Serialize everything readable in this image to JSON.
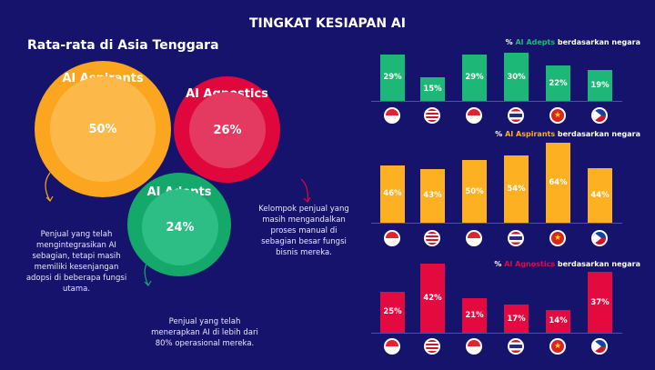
{
  "title": "TINGKAT KESIAPAN AI",
  "subtitle": "Rata-rata di Asia Tenggara",
  "segments": {
    "aspirants": {
      "name": "AI Aspirants",
      "value": "50%",
      "desc": "Penjual yang telah mengintegrasikan AI sebagian, tetapi masih memiliki kesenjangan adopsi di beberapa fungsi utama.",
      "color": "#fca61f"
    },
    "agnostics": {
      "name": "AI Agnostics",
      "value": "26%",
      "desc": "Kelompok penjual yang masih mengandalkan proses manual di sebagian besar fungsi bisnis mereka.",
      "color": "#e0073d"
    },
    "adepts": {
      "name": "AI Adepts",
      "value": "24%",
      "desc": "Penjual yang telah menerapkan AI di lebih dari 80% operasional mereka.",
      "color": "#14a86b"
    }
  },
  "chart_data": [
    {
      "type": "bar",
      "title_prefix": "% ",
      "title_highlight": "AI Adepts",
      "title_suffix": " berdasarkan negara",
      "color": "#1db877",
      "categories": [
        "Singapore",
        "Malaysia",
        "Indonesia",
        "Thailand",
        "Vietnam",
        "Philippines"
      ],
      "values": [
        29,
        15,
        29,
        30,
        22,
        19
      ]
    },
    {
      "type": "bar",
      "title_prefix": "% ",
      "title_highlight": "AI Aspirants",
      "title_suffix": " berdasarkan negara",
      "color": "#fdb022",
      "categories": [
        "Singapore",
        "Malaysia",
        "Indonesia",
        "Thailand",
        "Vietnam",
        "Philippines"
      ],
      "values": [
        46,
        43,
        50,
        54,
        64,
        44
      ]
    },
    {
      "type": "bar",
      "title_prefix": "% ",
      "title_highlight": "AI Agnostics",
      "title_suffix": " berdasarkan negara",
      "color": "#e4093f",
      "categories": [
        "Singapore",
        "Malaysia",
        "Indonesia",
        "Thailand",
        "Vietnam",
        "Philippines"
      ],
      "values": [
        25,
        42,
        21,
        17,
        14,
        37
      ]
    }
  ]
}
